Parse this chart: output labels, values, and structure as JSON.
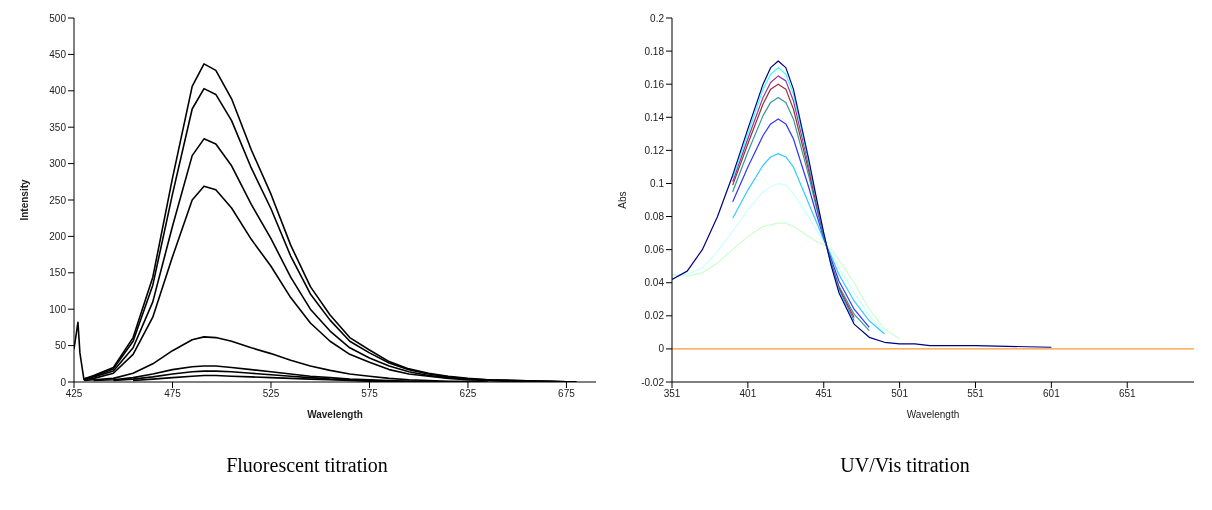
{
  "chart_data": [
    {
      "type": "line",
      "title": "Fluorescent titration",
      "xlabel": "Wavelength",
      "ylabel": "Intensity",
      "x": [
        425,
        427,
        428,
        430,
        435,
        445,
        455,
        465,
        475,
        485,
        491,
        497,
        505,
        515,
        525,
        535,
        545,
        555,
        565,
        575,
        585,
        595,
        605,
        615,
        625,
        635,
        650,
        665,
        680
      ],
      "xlim": [
        425,
        690
      ],
      "xticks": [
        425,
        475,
        525,
        575,
        625,
        675
      ],
      "ylim": [
        0,
        500
      ],
      "yticks": [
        0,
        50,
        100,
        150,
        200,
        250,
        300,
        350,
        400,
        450,
        500
      ],
      "series": [
        {
          "color": "#000000",
          "values": [
            45,
            82,
            40,
            4,
            9,
            20,
            61,
            144,
            280,
            406,
            437,
            428,
            389,
            319,
            258,
            188,
            131,
            92,
            61,
            44,
            28,
            18,
            12,
            8,
            5,
            3,
            2,
            1,
            0
          ]
        },
        {
          "color": "#000000",
          "values": [
            null,
            null,
            null,
            4,
            8,
            18,
            56,
            133,
            258,
            375,
            403,
            395,
            359,
            294,
            238,
            173,
            121,
            85,
            56,
            40,
            26,
            17,
            11,
            7,
            4,
            3,
            2,
            1,
            0
          ]
        },
        {
          "color": "#000000",
          "values": [
            null,
            null,
            null,
            4,
            7,
            15,
            47,
            110,
            214,
            311,
            334,
            327,
            297,
            244,
            197,
            144,
            100,
            70,
            47,
            33,
            22,
            14,
            9,
            6,
            4,
            2,
            1,
            1,
            0
          ]
        },
        {
          "color": "#000000",
          "values": [
            null,
            null,
            null,
            3,
            5,
            12,
            38,
            89,
            172,
            250,
            269,
            264,
            239,
            196,
            159,
            116,
            81,
            56,
            38,
            27,
            17,
            11,
            8,
            5,
            3,
            2,
            1,
            0,
            0
          ]
        },
        {
          "color": "#000000",
          "values": [
            null,
            null,
            null,
            2,
            3,
            5,
            12,
            25,
            43,
            58,
            62,
            61,
            56,
            47,
            39,
            30,
            22,
            16,
            11,
            8,
            5,
            3,
            2,
            1,
            1,
            0,
            null,
            null,
            null
          ]
        },
        {
          "color": "#000000",
          "values": [
            null,
            null,
            null,
            null,
            2,
            3,
            6,
            11,
            17,
            21,
            22,
            22,
            20,
            17,
            14,
            11,
            8,
            6,
            4,
            3,
            2,
            1,
            1,
            0,
            null,
            null,
            null,
            null,
            null
          ]
        },
        {
          "color": "#000000",
          "values": [
            null,
            null,
            null,
            null,
            null,
            2,
            4,
            7,
            11,
            14,
            15,
            15,
            14,
            12,
            10,
            8,
            6,
            4,
            3,
            2,
            1,
            1,
            0,
            null,
            null,
            null,
            null,
            null,
            null
          ]
        },
        {
          "color": "#000000",
          "values": [
            null,
            null,
            null,
            null,
            null,
            null,
            2,
            4,
            6,
            8,
            9,
            9,
            8,
            7,
            6,
            5,
            4,
            3,
            2,
            1,
            1,
            0,
            null,
            null,
            null,
            null,
            null,
            null,
            null
          ]
        }
      ]
    },
    {
      "type": "line",
      "title": "UV/Vis titration",
      "xlabel": "Wavelength",
      "ylabel": "Abs",
      "x": [
        351,
        361,
        371,
        381,
        391,
        401,
        411,
        416,
        421,
        426,
        431,
        441,
        446,
        451,
        456,
        461,
        471,
        481,
        491,
        501,
        511,
        521,
        551,
        601
      ],
      "xlim": [
        351,
        695
      ],
      "xticks": [
        351,
        401,
        451,
        501,
        551,
        601,
        651
      ],
      "ylim": [
        -0.02,
        0.2
      ],
      "yticks": [
        -0.02,
        0,
        0.02,
        0.04,
        0.06,
        0.08,
        0.1,
        0.12,
        0.14,
        0.16,
        0.18,
        0.2
      ],
      "series": [
        {
          "color": "#ff9933",
          "x": [
            351,
            695
          ],
          "values": [
            0,
            0
          ]
        },
        {
          "color": "#ccffcc",
          "values": [
            0.045,
            0.044,
            0.046,
            0.052,
            0.06,
            0.068,
            0.074,
            0.075,
            0.076,
            0.076,
            0.074,
            0.068,
            0.065,
            0.063,
            0.06,
            0.054,
            0.04,
            0.024,
            0.012,
            0.006,
            null,
            null,
            null,
            null
          ]
        },
        {
          "color": "#ccffff",
          "values": [
            0.044,
            0.045,
            0.049,
            0.059,
            0.071,
            0.084,
            0.095,
            0.098,
            0.1,
            0.099,
            0.094,
            0.08,
            0.072,
            0.065,
            0.058,
            0.049,
            0.034,
            0.02,
            0.01,
            null,
            null,
            null,
            null,
            null
          ]
        },
        {
          "color": "#33ccff",
          "values": [
            null,
            null,
            null,
            null,
            0.079,
            0.096,
            0.111,
            0.116,
            0.118,
            0.116,
            0.11,
            0.088,
            0.077,
            0.066,
            0.056,
            0.045,
            0.029,
            0.017,
            0.009,
            null,
            null,
            null,
            null,
            null
          ]
        },
        {
          "color": "#3333ff",
          "values": [
            null,
            null,
            null,
            null,
            0.089,
            0.11,
            0.129,
            0.136,
            0.139,
            0.136,
            0.127,
            0.098,
            0.082,
            0.067,
            0.054,
            0.041,
            0.024,
            0.013,
            null,
            null,
            null,
            null,
            null,
            null
          ]
        },
        {
          "color": "#339999",
          "values": [
            null,
            null,
            null,
            null,
            0.095,
            0.119,
            0.141,
            0.149,
            0.152,
            0.149,
            0.139,
            0.105,
            0.086,
            0.068,
            0.052,
            0.038,
            0.021,
            0.011,
            null,
            null,
            null,
            null,
            null,
            null
          ]
        },
        {
          "color": "#993333",
          "values": [
            null,
            null,
            null,
            null,
            0.099,
            0.124,
            0.148,
            0.157,
            0.16,
            0.157,
            0.145,
            0.108,
            0.088,
            0.069,
            0.051,
            0.037,
            0.019,
            null,
            null,
            null,
            null,
            null,
            null,
            null
          ]
        },
        {
          "color": "#993399",
          "values": [
            null,
            null,
            null,
            null,
            0.101,
            0.127,
            0.152,
            0.161,
            0.165,
            0.162,
            0.15,
            0.111,
            0.09,
            0.069,
            0.051,
            0.036,
            0.017,
            null,
            null,
            null,
            null,
            null,
            null,
            null
          ]
        },
        {
          "color": "#33ffff",
          "values": [
            null,
            null,
            null,
            null,
            0.103,
            0.13,
            0.157,
            0.166,
            0.17,
            0.166,
            0.154,
            0.113,
            0.091,
            0.07,
            0.05,
            0.035,
            0.016,
            null,
            null,
            null,
            null,
            null,
            null,
            null
          ]
        },
        {
          "color": "#000080",
          "values": [
            0.042,
            0.047,
            0.06,
            0.08,
            0.105,
            0.133,
            0.16,
            0.17,
            0.174,
            0.17,
            0.157,
            0.115,
            0.092,
            0.07,
            0.05,
            0.034,
            0.015,
            0.007,
            0.004,
            0.003,
            0.003,
            0.002,
            0.002,
            0.001
          ]
        }
      ]
    }
  ]
}
